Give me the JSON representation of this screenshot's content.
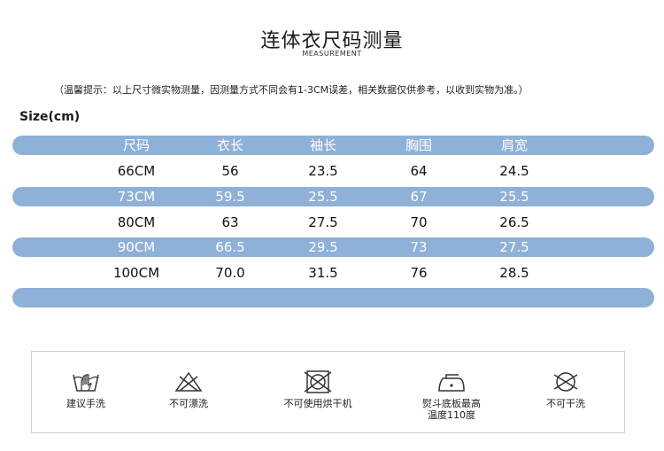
{
  "header": {
    "title": "连体衣尺码测量",
    "subtitle": "MEASUREMENT"
  },
  "note": "（温馨提示：以上尺寸微实物测量，因测量方式不同会有1-3CM误差，相关数据仅供参考，以收到实物为准。）",
  "size_label": "Size(cm)",
  "table": {
    "headers": [
      "尺码",
      "衣长",
      "袖长",
      "胸围",
      "肩宽"
    ],
    "rows": [
      [
        "66CM",
        "56",
        "23.5",
        "64",
        "24.5"
      ],
      [
        "73CM",
        "59.5",
        "25.5",
        "67",
        "25.5"
      ],
      [
        "80CM",
        "63",
        "27.5",
        "70",
        "26.5"
      ],
      [
        "90CM",
        "66.5",
        "29.5",
        "73",
        "27.5"
      ],
      [
        "100CM",
        "70.0",
        "31.5",
        "76",
        "28.5"
      ]
    ]
  },
  "care": {
    "items": [
      {
        "icon": "hand-wash-icon",
        "label": "建议手洗"
      },
      {
        "icon": "no-bleach-icon",
        "label": "不可漂洗"
      },
      {
        "icon": "no-tumble-dry-icon",
        "label": "不可使用烘干机"
      },
      {
        "icon": "iron-max-110-icon",
        "label": "熨斗底板最高\n温度110度"
      },
      {
        "icon": "no-dry-clean-icon",
        "label": "不可干洗"
      }
    ]
  },
  "colors": {
    "band": "#8fb0d7",
    "band_text": "#ffffff",
    "icon_stroke": "#333333"
  }
}
